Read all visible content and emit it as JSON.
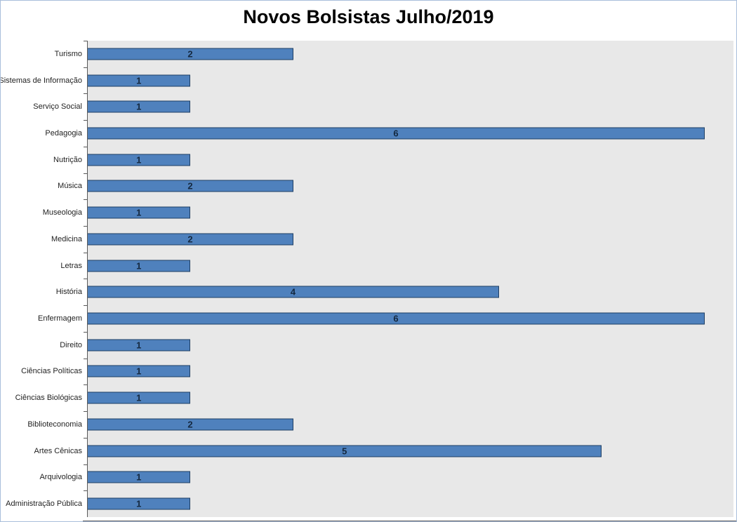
{
  "chart_data": {
    "type": "bar",
    "orientation": "horizontal",
    "title": "Novos Bolsistas Julho/2019",
    "xlabel": "",
    "ylabel": "",
    "grid": false,
    "legend": false,
    "xlim": [
      0,
      6.28
    ],
    "categories": [
      "Turismo",
      "Sistemas de Informação",
      "Serviço Social",
      "Pedagogia",
      "Nutrição",
      "Música",
      "Museologia",
      "Medicina",
      "Letras",
      "História",
      "Enfermagem",
      "Direito",
      "Ciências Políticas",
      "Ciências Biológicas",
      "Biblioteconomia",
      "Artes Cênicas",
      "Arquivologia",
      "Administração Pública"
    ],
    "values": [
      2,
      1,
      1,
      6,
      1,
      2,
      1,
      2,
      1,
      4,
      6,
      1,
      1,
      1,
      2,
      5,
      1,
      1
    ],
    "data_labels_position": "center-of-bar"
  },
  "colors": {
    "bar_fill": "#4f81bd",
    "bar_border": "#1e3e63",
    "plot_background": "#e8e8e8",
    "value_label": "#14283f",
    "axis_line": "#595959",
    "frame_border": "#a9bedb",
    "title_text": "#000000",
    "category_label_text": "#1f1f1f"
  }
}
